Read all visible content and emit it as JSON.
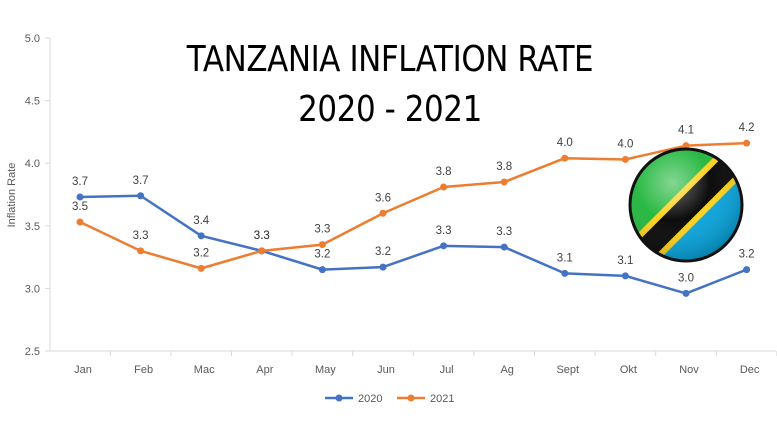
{
  "chart_data": {
    "type": "line",
    "title_line1": "TANZANIA INFLATION RATE",
    "title_line2": "2020 - 2021",
    "ylabel": "Inflation Rate",
    "ylim": [
      2.5,
      5.0
    ],
    "yticks": [
      "2.5",
      "3.0",
      "3.5",
      "4.0",
      "4.5",
      "5.0"
    ],
    "categories": [
      "Jan",
      "Feb",
      "Mac",
      "Apr",
      "May",
      "Jun",
      "Jul",
      "Ag",
      "Sept",
      "Okt",
      "Nov",
      "Dec"
    ],
    "grid": false,
    "legend_position": "bottom",
    "series": [
      {
        "name": "2020",
        "color": "#4472C4",
        "values": [
          3.73,
          3.74,
          3.42,
          3.3,
          3.15,
          3.17,
          3.34,
          3.33,
          3.12,
          3.1,
          2.96,
          3.15
        ],
        "labels": [
          "3.7",
          "3.7",
          "3.4",
          "3.3",
          "3.2",
          "3.2",
          "3.3",
          "3.3",
          "3.1",
          "3.1",
          "3.0",
          "3.2"
        ]
      },
      {
        "name": "2021",
        "color": "#ED7D31",
        "values": [
          3.53,
          3.3,
          3.16,
          3.3,
          3.35,
          3.6,
          3.81,
          3.85,
          4.04,
          4.03,
          4.14,
          4.16
        ],
        "labels": [
          "3.5",
          "3.3",
          "3.2",
          "3.3",
          "3.3",
          "3.6",
          "3.8",
          "3.8",
          "4.0",
          "4.0",
          "4.1",
          "4.2"
        ]
      }
    ]
  },
  "flag": {
    "name": "tanzania-flag-icon",
    "green": "#1EB53A",
    "blue": "#00A3DD",
    "yellow": "#FCD116",
    "black": "#000000"
  }
}
